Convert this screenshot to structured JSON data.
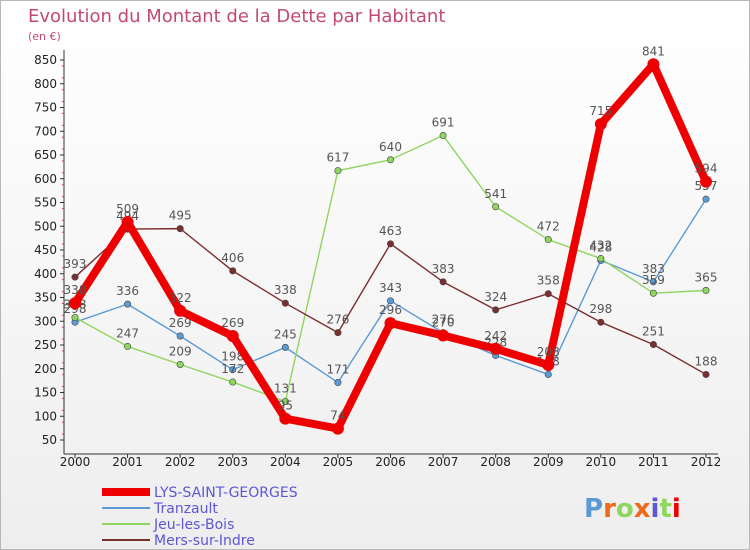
{
  "chart_data": {
    "type": "line",
    "title": "Evolution du Montant de la Dette par Habitant",
    "subtitle": "(en €)",
    "x": [
      "2000",
      "2001",
      "2002",
      "2003",
      "2004",
      "2005",
      "2006",
      "2007",
      "2008",
      "2009",
      "2010",
      "2011",
      "2012"
    ],
    "ylim": [
      50,
      850
    ],
    "yticks": [
      50,
      100,
      150,
      200,
      250,
      300,
      350,
      400,
      450,
      500,
      550,
      600,
      650,
      700,
      750,
      800,
      850
    ],
    "grid": false,
    "legend_position": "bottom-left",
    "series": [
      {
        "name": "Tranzault",
        "color": "#5b9bd5",
        "values": [
          298,
          336,
          269,
          198,
          245,
          171,
          343,
          276,
          228,
          188,
          428,
          383,
          557
        ],
        "labels": [
          "298",
          "336",
          "269",
          "198",
          "245",
          "171",
          "343",
          "276",
          "228",
          "188",
          "428",
          "383",
          "557"
        ]
      },
      {
        "name": "Jeu-les-Bois",
        "color": "#8fd65f",
        "values": [
          308,
          247,
          209,
          172,
          131,
          617,
          640,
          691,
          541,
          472,
          432,
          359,
          365
        ],
        "labels": [
          "308",
          "247",
          "209",
          "172",
          "131",
          "617",
          "640",
          "691",
          "541",
          "472",
          "432",
          "359",
          "365"
        ]
      },
      {
        "name": "Mers-sur-Indre",
        "color": "#7a2e2e",
        "values": [
          393,
          494,
          495,
          406,
          338,
          276,
          463,
          383,
          324,
          358,
          298,
          251,
          188
        ],
        "labels": [
          "393",
          "494",
          "495",
          "406",
          "338",
          "276",
          "463",
          "383",
          "324",
          "358",
          "298",
          "251",
          "188"
        ]
      },
      {
        "name": "LYS-SAINT-GEORGES",
        "color": "#ee0000",
        "values": [
          338,
          509,
          322,
          269,
          95,
          74,
          296,
          270,
          242,
          208,
          715,
          841,
          594
        ],
        "labels": [
          "338",
          "509",
          "322",
          "269",
          "95",
          "74",
          "296",
          "270",
          "242",
          "208",
          "715",
          "841",
          "594"
        ],
        "highlight": true
      }
    ]
  },
  "legend": [
    {
      "name": "LYS-SAINT-GEORGES",
      "color": "#ee0000"
    },
    {
      "name": "Tranzault",
      "color": "#5b9bd5"
    },
    {
      "name": "Jeu-les-Bois",
      "color": "#8fd65f"
    },
    {
      "name": "Mers-sur-Indre",
      "color": "#7a2e2e"
    }
  ],
  "logo": {
    "text": "Proxiti",
    "colors": [
      "#5b9bd5",
      "#ee6a1a",
      "#8fd65f",
      "#ee6a1a",
      "#5b57d6",
      "#8fd65f",
      "#ee0000"
    ]
  }
}
